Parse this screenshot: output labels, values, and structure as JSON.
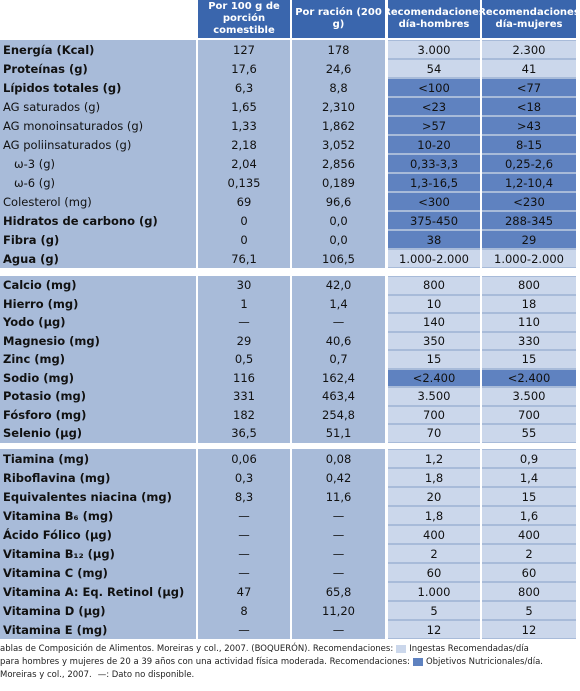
{
  "table": {
    "header": [
      "Por 100 g de porción comestible",
      "Por ración (200 g)",
      "Recomendaciones día-hombres",
      "Recomendaciones día-mujeres"
    ],
    "sections": [
      {
        "rows": [
          {
            "label": "Energía (Kcal)",
            "bold": true,
            "cells": [
              "127",
              "178",
              "3.000",
              "2.300"
            ],
            "rec_color": "#cbd7eb"
          },
          {
            "label": "Proteínas (g)",
            "bold": true,
            "cells": [
              "17,6",
              "24,6",
              "54",
              "41"
            ],
            "rec_color": "#cbd7eb"
          },
          {
            "label": "Lípidos totales (g)",
            "bold": true,
            "cells": [
              "6,3",
              "8,8",
              "<100",
              "<77"
            ],
            "rec_color": "#5f82c0"
          },
          {
            "label": "AG saturados (g)",
            "cells": [
              "1,65",
              "2,310",
              "<23",
              "<18"
            ],
            "rec_color": "#5f82c0"
          },
          {
            "label": "AG monoinsaturados (g)",
            "cells": [
              "1,33",
              "1,862",
              ">57",
              ">43"
            ],
            "rec_color": "#5f82c0"
          },
          {
            "label": "AG poliinsaturados (g)",
            "cells": [
              "2,18",
              "3,052",
              "10-20",
              "8-15"
            ],
            "rec_color": "#5f82c0"
          },
          {
            "label": "ω-3 (g)",
            "indent": true,
            "cells": [
              "2,04",
              "2,856",
              "0,33-3,3",
              "0,25-2,6"
            ],
            "rec_color": "#5f82c0"
          },
          {
            "label": "ω-6 (g)",
            "indent": true,
            "cells": [
              "0,135",
              "0,189",
              "1,3-16,5",
              "1,2-10,4"
            ],
            "rec_color": "#5f82c0"
          },
          {
            "label": "Colesterol (mg)",
            "cells": [
              "69",
              "96,6",
              "<300",
              "<230"
            ],
            "rec_color": "#5f82c0"
          },
          {
            "label": "Hidratos de carbono (g)",
            "bold": true,
            "cells": [
              "0",
              "0,0",
              "375-450",
              "288-345"
            ],
            "rec_color": "#5f82c0"
          },
          {
            "label": "Fibra (g)",
            "bold": true,
            "cells": [
              "0",
              "0,0",
              "38",
              "29"
            ],
            "rec_color": "#5f82c0"
          },
          {
            "label": "Agua (g)",
            "bold": true,
            "cells": [
              "76,1",
              "106,5",
              "1.000-2.000",
              "1.000-2.000"
            ],
            "rec_color": "#cbd7eb"
          }
        ]
      },
      {
        "rows": [
          {
            "label": "Calcio (mg)",
            "bold": true,
            "cells": [
              "30",
              "42,0",
              "800",
              "800"
            ],
            "rec_color": "#cbd7eb"
          },
          {
            "label": "Hierro (mg)",
            "bold": true,
            "cells": [
              "1",
              "1,4",
              "10",
              "18"
            ],
            "rec_color": "#cbd7eb"
          },
          {
            "label": "Yodo (µg)",
            "bold": true,
            "cells": [
              "—",
              "—",
              "140",
              "110"
            ],
            "rec_color": "#cbd7eb"
          },
          {
            "label": "Magnesio (mg)",
            "bold": true,
            "cells": [
              "29",
              "40,6",
              "350",
              "330"
            ],
            "rec_color": "#cbd7eb"
          },
          {
            "label": "Zinc (mg)",
            "bold": true,
            "cells": [
              "0,5",
              "0,7",
              "15",
              "15"
            ],
            "rec_color": "#cbd7eb"
          },
          {
            "label": "Sodio (mg)",
            "bold": true,
            "cells": [
              "116",
              "162,4",
              "<2.400",
              "<2.400"
            ],
            "rec_color": "#5f82c0"
          },
          {
            "label": "Potasio (mg)",
            "bold": true,
            "cells": [
              "331",
              "463,4",
              "3.500",
              "3.500"
            ],
            "rec_color": "#cbd7eb"
          },
          {
            "label": "Fósforo (mg)",
            "bold": true,
            "cells": [
              "182",
              "254,8",
              "700",
              "700"
            ],
            "rec_color": "#cbd7eb"
          },
          {
            "label": "Selenio (µg)",
            "bold": true,
            "cells": [
              "36,5",
              "51,1",
              "70",
              "55"
            ],
            "rec_color": "#cbd7eb"
          }
        ]
      },
      {
        "rows": [
          {
            "label": "Tiamina (mg)",
            "bold": true,
            "cells": [
              "0,06",
              "0,08",
              "1,2",
              "0,9"
            ],
            "rec_color": "#cbd7eb"
          },
          {
            "label": "Riboflavina  (mg)",
            "bold": true,
            "cells": [
              "0,3",
              "0,42",
              "1,8",
              "1,4"
            ],
            "rec_color": "#cbd7eb"
          },
          {
            "label": "Equivalentes niacina (mg)",
            "bold": true,
            "cells": [
              "8,3",
              "11,6",
              "20",
              "15"
            ],
            "rec_color": "#cbd7eb"
          },
          {
            "label": "Vitamina B₆ (mg)",
            "bold": true,
            "cells": [
              "—",
              "—",
              "1,8",
              "1,6"
            ],
            "rec_color": "#cbd7eb"
          },
          {
            "label": "Ácido Fólico (µg)",
            "bold": true,
            "cells": [
              "—",
              "—",
              "400",
              "400"
            ],
            "rec_color": "#cbd7eb"
          },
          {
            "label": "Vitamina B₁₂ (µg)",
            "bold": true,
            "cells": [
              "—",
              "—",
              "2",
              "2"
            ],
            "rec_color": "#cbd7eb"
          },
          {
            "label": "Vitamina C (mg)",
            "bold": true,
            "cells": [
              "—",
              "—",
              "60",
              "60"
            ],
            "rec_color": "#cbd7eb"
          },
          {
            "label": "Vitamina A: Eq. Retinol (µg)",
            "bold": true,
            "cells": [
              "47",
              "65,8",
              "1.000",
              "800"
            ],
            "rec_color": "#cbd7eb"
          },
          {
            "label": "Vitamina D (µg)",
            "bold": true,
            "cells": [
              "8",
              "11,20",
              "5",
              "5"
            ],
            "rec_color": "#cbd7eb"
          },
          {
            "label": "Vitamina E (mg)",
            "bold": true,
            "cells": [
              "—",
              "—",
              "12",
              "12"
            ],
            "rec_color": "#cbd7eb"
          }
        ]
      }
    ]
  },
  "footnote": {
    "line1": "ablas de Composición de Alimentos. Moreiras y col., 2007. (BOQUERÓN).  Recomendaciones:",
    "legend1": "Ingestas Recomendadas/día",
    "legend1_color": "#cbd7eb",
    "line2": "para hombres y mujeres de 20 a 39 años con una actividad física moderada.  Recomendaciones:",
    "legend2": "Objetivos Nutricionales/día.",
    "legend2_color": "#5f82c0",
    "line3": "Moreiras y col., 2007.",
    "dash_note": "—: Dato no disponible."
  }
}
